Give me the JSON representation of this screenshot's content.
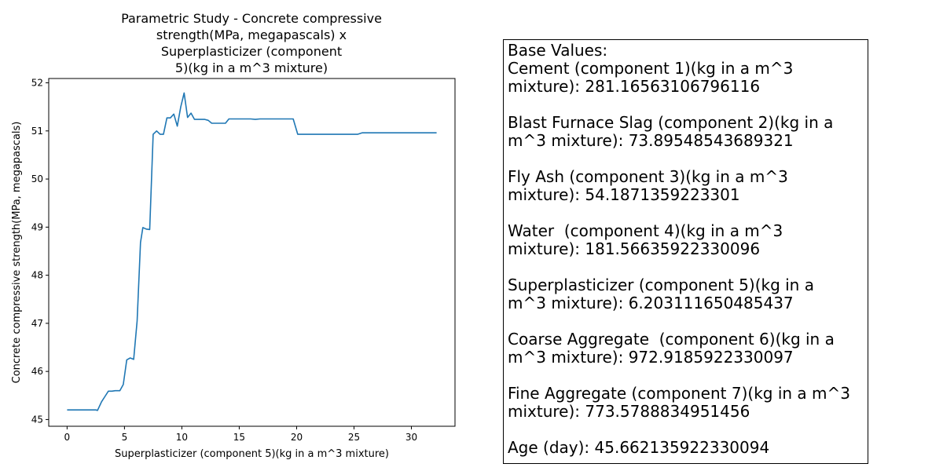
{
  "chart_data": {
    "type": "line",
    "title_lines": [
      "Parametric Study - Concrete compressive",
      "strength(MPa, megapascals)  x",
      "Superplasticizer (component",
      "5)(kg in a m^3 mixture)"
    ],
    "xlabel": "Superplasticizer (component 5)(kg in a m^3 mixture)",
    "ylabel": "Concrete compressive strength(MPa, megapascals)",
    "xlim": [
      -1.6,
      33.8
    ],
    "ylim": [
      44.86,
      52.09
    ],
    "xticks": [
      0,
      5,
      10,
      15,
      20,
      25,
      30
    ],
    "yticks": [
      45,
      46,
      47,
      48,
      49,
      50,
      51,
      52
    ],
    "grid": false,
    "color": "#1f77b4",
    "series": [
      {
        "x": [
          0,
          0.5,
          1,
          1.5,
          2,
          2.5,
          2.65,
          3.0,
          3.3,
          3.6,
          3.9,
          4.2,
          4.6,
          4.9,
          5.2,
          5.5,
          5.8,
          6.1,
          6.4,
          6.6,
          6.9,
          7.2,
          7.5,
          7.8,
          8.1,
          8.4,
          8.7,
          9.0,
          9.3,
          9.6,
          9.9,
          10.2,
          10.5,
          10.8,
          11.1,
          11.4,
          11.7,
          12.0,
          12.3,
          12.6,
          12.9,
          13.2,
          13.5,
          13.8,
          14.1,
          14.4,
          14.8,
          15.2,
          15.6,
          16.0,
          16.4,
          16.8,
          19.7,
          20.1,
          20.5,
          25.3,
          25.7,
          32.2
        ],
        "y": [
          45.2,
          45.2,
          45.2,
          45.2,
          45.2,
          45.2,
          45.19,
          45.37,
          45.48,
          45.59,
          45.59,
          45.6,
          45.6,
          45.73,
          46.24,
          46.28,
          46.25,
          47.05,
          48.68,
          48.99,
          48.96,
          48.95,
          50.93,
          51.0,
          50.93,
          50.93,
          51.27,
          51.27,
          51.35,
          51.1,
          51.5,
          51.79,
          51.28,
          51.37,
          51.24,
          51.24,
          51.24,
          51.24,
          51.22,
          51.16,
          51.16,
          51.16,
          51.16,
          51.16,
          51.25,
          51.25,
          51.25,
          51.25,
          51.25,
          51.25,
          51.24,
          51.25,
          51.25,
          50.93,
          50.93,
          50.93,
          50.96,
          50.96
        ]
      }
    ]
  },
  "base_values": {
    "lines": [
      "Base Values:",
      "Cement (component 1)(kg in a m^3",
      "mixture): 281.16563106796116",
      "",
      "Blast Furnace Slag (component 2)(kg in a",
      "m^3 mixture): 73.89548543689321",
      "",
      "Fly Ash (component 3)(kg in a m^3",
      "mixture): 54.1871359223301",
      "",
      "Water  (component 4)(kg in a m^3",
      "mixture): 181.56635922330096",
      "",
      "Superplasticizer (component 5)(kg in a",
      "m^3 mixture): 6.203111650485437",
      "",
      "Coarse Aggregate  (component 6)(kg in a",
      "m^3 mixture): 972.9185922330097",
      "",
      "Fine Aggregate (component 7)(kg in a m^3",
      "mixture): 773.5788834951456",
      "",
      "Age (day): 45.662135922330094"
    ]
  }
}
